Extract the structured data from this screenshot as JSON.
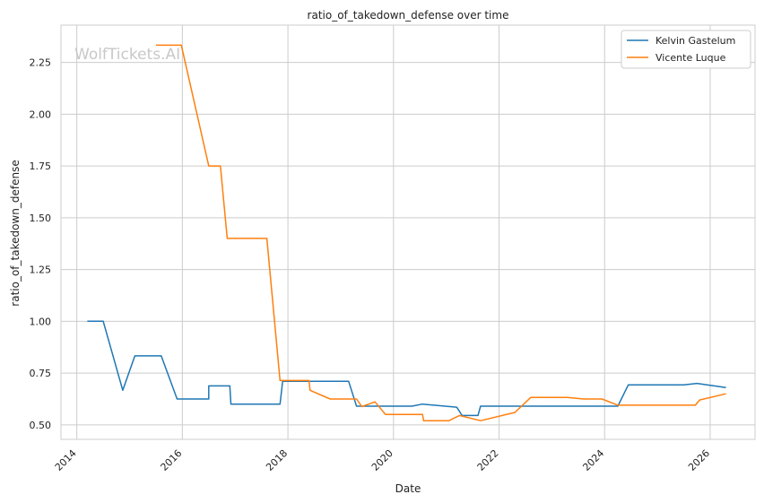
{
  "chart_data": {
    "type": "line",
    "title": "ratio_of_takedown_defense over time",
    "xlabel": "Date",
    "ylabel": "ratio_of_takedown_defense",
    "watermark": "WolfTickets.AI",
    "xlim": [
      2013.7,
      2026.85
    ],
    "ylim": [
      0.43,
      2.43
    ],
    "x_ticks": [
      2014,
      2016,
      2018,
      2020,
      2022,
      2024,
      2026
    ],
    "x_tick_labels": [
      "2014",
      "2016",
      "2018",
      "2020",
      "2022",
      "2024",
      "2026"
    ],
    "y_ticks": [
      0.5,
      0.75,
      1.0,
      1.25,
      1.5,
      1.75,
      2.0,
      2.25
    ],
    "y_tick_labels": [
      "0.50",
      "0.75",
      "1.00",
      "1.25",
      "1.50",
      "1.75",
      "2.00",
      "2.25"
    ],
    "grid": true,
    "legend_position": "top-right",
    "series": [
      {
        "name": "Kelvin Gastelum",
        "color": "#1f77b4",
        "points": [
          [
            2014.2,
            1.0
          ],
          [
            2014.5,
            1.0
          ],
          [
            2014.87,
            0.667
          ],
          [
            2015.1,
            0.833
          ],
          [
            2015.6,
            0.833
          ],
          [
            2015.9,
            0.625
          ],
          [
            2016.5,
            0.625
          ],
          [
            2016.5,
            0.688
          ],
          [
            2016.9,
            0.688
          ],
          [
            2016.92,
            0.6
          ],
          [
            2017.85,
            0.6
          ],
          [
            2017.9,
            0.71
          ],
          [
            2019.15,
            0.71
          ],
          [
            2019.3,
            0.59
          ],
          [
            2020.35,
            0.59
          ],
          [
            2020.55,
            0.6
          ],
          [
            2021.2,
            0.585
          ],
          [
            2021.3,
            0.545
          ],
          [
            2021.6,
            0.545
          ],
          [
            2021.65,
            0.59
          ],
          [
            2024.25,
            0.59
          ],
          [
            2024.45,
            0.693
          ],
          [
            2025.5,
            0.693
          ],
          [
            2025.75,
            0.7
          ],
          [
            2026.3,
            0.68
          ]
        ]
      },
      {
        "name": "Vicente Luque",
        "color": "#ff7f0e",
        "points": [
          [
            2015.5,
            2.333
          ],
          [
            2015.98,
            2.333
          ],
          [
            2016.5,
            1.75
          ],
          [
            2016.72,
            1.75
          ],
          [
            2016.85,
            1.4
          ],
          [
            2017.6,
            1.4
          ],
          [
            2017.85,
            0.714
          ],
          [
            2018.4,
            0.714
          ],
          [
            2018.42,
            0.667
          ],
          [
            2018.8,
            0.625
          ],
          [
            2019.3,
            0.625
          ],
          [
            2019.4,
            0.588
          ],
          [
            2019.65,
            0.611
          ],
          [
            2019.85,
            0.55
          ],
          [
            2020.55,
            0.55
          ],
          [
            2020.57,
            0.52
          ],
          [
            2021.05,
            0.52
          ],
          [
            2021.25,
            0.545
          ],
          [
            2021.65,
            0.52
          ],
          [
            2022.3,
            0.56
          ],
          [
            2022.6,
            0.632
          ],
          [
            2023.3,
            0.632
          ],
          [
            2023.6,
            0.625
          ],
          [
            2023.95,
            0.625
          ],
          [
            2024.25,
            0.595
          ],
          [
            2025.72,
            0.595
          ],
          [
            2025.8,
            0.62
          ],
          [
            2026.3,
            0.65
          ]
        ]
      }
    ]
  }
}
